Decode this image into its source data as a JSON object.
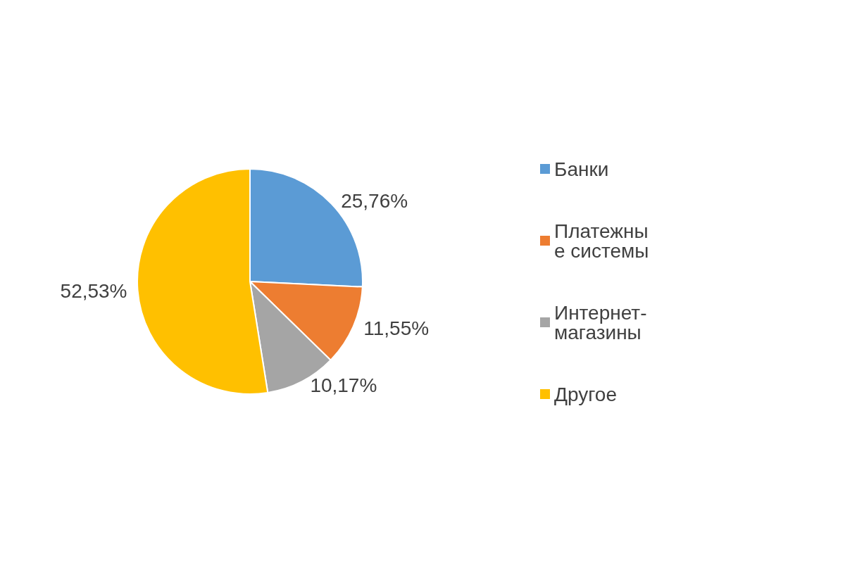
{
  "chart_data": {
    "type": "pie",
    "categories": [
      "Банки",
      "Платежные системы",
      "Интернет-магазины",
      "Другое"
    ],
    "values": [
      25.76,
      11.55,
      10.17,
      52.53
    ],
    "value_labels": [
      "25,76%",
      "11,55%",
      "10,17%",
      "52,53%"
    ],
    "colors": [
      "#5b9bd5",
      "#ed7d31",
      "#a5a5a5",
      "#ffc000"
    ],
    "legend": "right"
  }
}
